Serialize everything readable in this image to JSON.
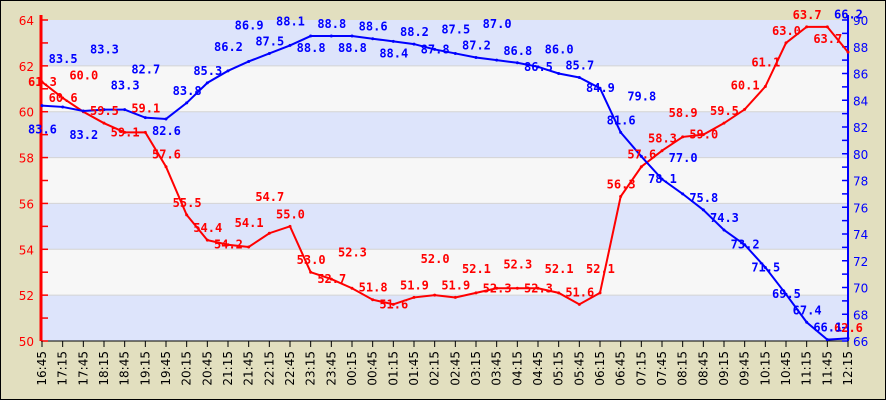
{
  "chart_data": {
    "type": "line",
    "categories": [
      "16:45",
      "17:15",
      "17:45",
      "18:15",
      "18:45",
      "19:15",
      "19:45",
      "20:15",
      "20:45",
      "21:15",
      "21:45",
      "22:15",
      "22:45",
      "23:15",
      "23:45",
      "00:15",
      "00:45",
      "01:15",
      "01:45",
      "02:15",
      "02:45",
      "03:15",
      "03:45",
      "04:15",
      "04:45",
      "05:15",
      "05:45",
      "06:15",
      "06:45",
      "07:15",
      "07:45",
      "08:15",
      "08:45",
      "09:15",
      "09:45",
      "10:15",
      "10:45",
      "11:15",
      "11:45",
      "12:15"
    ],
    "series": [
      {
        "axis": "left",
        "color": "#ff0000",
        "values": [
          61.3,
          60.6,
          60.0,
          59.5,
          59.1,
          59.1,
          57.6,
          55.5,
          54.4,
          54.2,
          54.1,
          54.7,
          55.0,
          53.0,
          52.7,
          52.3,
          51.8,
          51.6,
          51.9,
          52.0,
          51.9,
          52.1,
          52.3,
          52.3,
          52.3,
          52.1,
          51.6,
          52.1,
          56.3,
          57.6,
          58.3,
          58.9,
          59.0,
          59.5,
          60.1,
          61.1,
          63.0,
          63.7,
          63.7,
          62.6
        ]
      },
      {
        "axis": "right",
        "color": "#0000ff",
        "values": [
          83.6,
          83.5,
          83.2,
          83.3,
          83.3,
          82.7,
          82.6,
          83.8,
          85.3,
          86.2,
          86.9,
          87.5,
          88.1,
          88.8,
          88.8,
          88.8,
          88.6,
          88.4,
          88.2,
          87.8,
          87.5,
          87.2,
          87.0,
          86.8,
          86.5,
          86.0,
          85.7,
          84.9,
          81.6,
          79.8,
          78.1,
          77.0,
          75.8,
          74.3,
          73.2,
          71.5,
          69.5,
          67.4,
          66.1,
          66.2
        ]
      }
    ],
    "left_axis": {
      "range": [
        50,
        64
      ],
      "ticks": [
        50,
        52,
        54,
        56,
        58,
        60,
        62,
        64
      ],
      "color": "#ff0000"
    },
    "right_axis": {
      "range": [
        66,
        90
      ],
      "ticks": [
        66,
        68,
        70,
        72,
        74,
        76,
        78,
        80,
        82,
        84,
        86,
        88,
        90
      ],
      "color": "#0000ff"
    },
    "grid": "horizontal bands",
    "band_colors": [
      "#f7f7f7",
      "#dde4fb"
    ]
  }
}
